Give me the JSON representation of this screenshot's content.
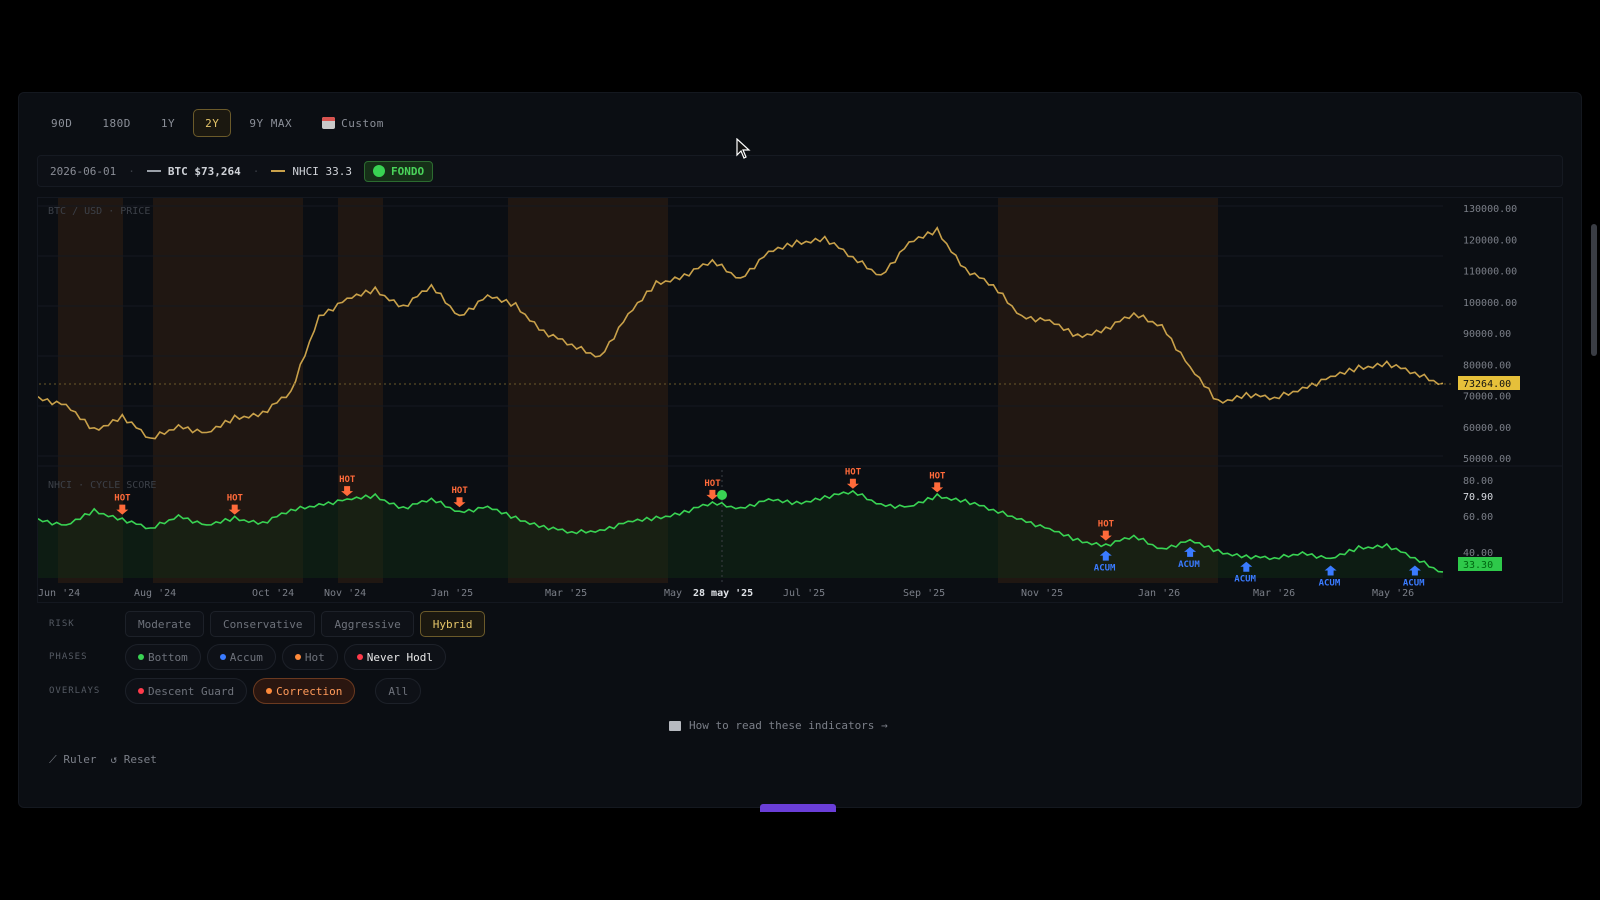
{
  "tabs": [
    {
      "label": "90D",
      "active": false
    },
    {
      "label": "180D",
      "active": false
    },
    {
      "label": "1Y",
      "active": false
    },
    {
      "label": "2Y",
      "active": true
    },
    {
      "label": "9Y MAX",
      "active": false
    },
    {
      "label": "Custom",
      "active": false,
      "icon": "calendar-icon"
    }
  ],
  "infobar": {
    "date": "2026-06-01",
    "btc_label": "BTC $73,264",
    "nhci_label": "NHCI 33.3",
    "phase_badge": "FONDO"
  },
  "chart": {
    "price_title": "BTC / USD · PRICE",
    "score_title": "NHCI · CYCLE SCORE",
    "price_ticks": [
      "130000.00",
      "120000.00",
      "110000.00",
      "100000.00",
      "90000.00",
      "80000.00",
      "70000.00",
      "60000.00",
      "50000.00"
    ],
    "score_ticks": [
      "80.00",
      "70.90",
      "60.00",
      "40.00"
    ],
    "price_last": "73264.00",
    "score_last": "33.30",
    "x_labels": [
      "Jun '24",
      "Aug '24",
      "Oct '24",
      "Nov '24",
      "Jan '25",
      "Mar '25",
      "May",
      "28 may '25",
      "Jul '25",
      "Sep '25",
      "Nov '25",
      "Jan '26",
      "Mar '26",
      "May '26"
    ],
    "hot_label": "HOT",
    "acum_label": "ACUM",
    "colors": {
      "price": "#c9a14a",
      "score": "#39d353",
      "hot": "#ff6a3a",
      "acum": "#3a7bff",
      "band": "#3a2412",
      "badge_price": "#e6c03a",
      "badge_score": "#2ec94a"
    }
  },
  "chart_data": [
    {
      "type": "line",
      "title": "BTC / USD · PRICE",
      "series": [
        {
          "name": "BTC",
          "values": [
            69000,
            66000,
            58000,
            63000,
            55000,
            60000,
            57000,
            62000,
            64000,
            70000,
            95000,
            100000,
            103000,
            98000,
            104000,
            95000,
            101000,
            98000,
            90000,
            85000,
            82000,
            95000,
            105000,
            108000,
            112000,
            107000,
            115000,
            118000,
            120000,
            113000,
            108000,
            118000,
            122000,
            110000,
            104000,
            95000,
            93000,
            88000,
            91000,
            95000,
            92000,
            78000,
            67000,
            70000,
            68000,
            72000,
            75000,
            78000,
            80000,
            76000,
            73264
          ]
        }
      ],
      "ylim": [
        50000,
        130000
      ],
      "x_start": "2024-06-01",
      "x_end": "2026-06-01"
    },
    {
      "type": "line",
      "title": "NHCI · CYCLE SCORE",
      "series": [
        {
          "name": "NHCI",
          "values": [
            62,
            58,
            66,
            62,
            56,
            64,
            58,
            62,
            60,
            66,
            70,
            72,
            74,
            68,
            72,
            66,
            68,
            62,
            58,
            54,
            56,
            60,
            62,
            66,
            70,
            68,
            72,
            70,
            74,
            76,
            70,
            68,
            74,
            72,
            66,
            62,
            56,
            50,
            48,
            52,
            46,
            50,
            44,
            42,
            40,
            44,
            40,
            46,
            48,
            40,
            33.3
          ]
        }
      ],
      "ylim": [
        30,
        85
      ],
      "markers": [
        {
          "type": "HOT",
          "index": 3
        },
        {
          "type": "HOT",
          "index": 7
        },
        {
          "type": "HOT",
          "index": 11
        },
        {
          "type": "HOT",
          "index": 15
        },
        {
          "type": "HOT",
          "index": 24
        },
        {
          "type": "HOT",
          "index": 29
        },
        {
          "type": "HOT",
          "index": 32
        },
        {
          "type": "HOT",
          "index": 38
        },
        {
          "type": "ACUM",
          "index": 38
        },
        {
          "type": "ACUM",
          "index": 41
        },
        {
          "type": "ACUM",
          "index": 43
        },
        {
          "type": "ACUM",
          "index": 46
        },
        {
          "type": "ACUM",
          "index": 49
        }
      ]
    }
  ],
  "controls": {
    "risk_label": "RISK",
    "risk_options": [
      {
        "label": "Moderate",
        "active": false
      },
      {
        "label": "Conservative",
        "active": false
      },
      {
        "label": "Aggressive",
        "active": false
      },
      {
        "label": "Hybrid",
        "active": true
      }
    ],
    "phases_label": "PHASES",
    "phases": [
      {
        "label": "Bottom",
        "color": "#39d353"
      },
      {
        "label": "Accum",
        "color": "#3a7bff"
      },
      {
        "label": "Hot",
        "color": "#ff8a3a"
      },
      {
        "label": "Never Hodl",
        "color": "#ff3a4a"
      }
    ],
    "overlays_label": "OVERLAYS",
    "overlays": [
      {
        "label": "Descent Guard",
        "color": "#ff3a4a",
        "active": false
      },
      {
        "label": "Correction",
        "color": "#ff8a3a",
        "active": true
      },
      {
        "label": "All",
        "active": false
      }
    ],
    "howto": "How to read these indicators →",
    "ruler": "Ruler",
    "reset": "Reset"
  }
}
